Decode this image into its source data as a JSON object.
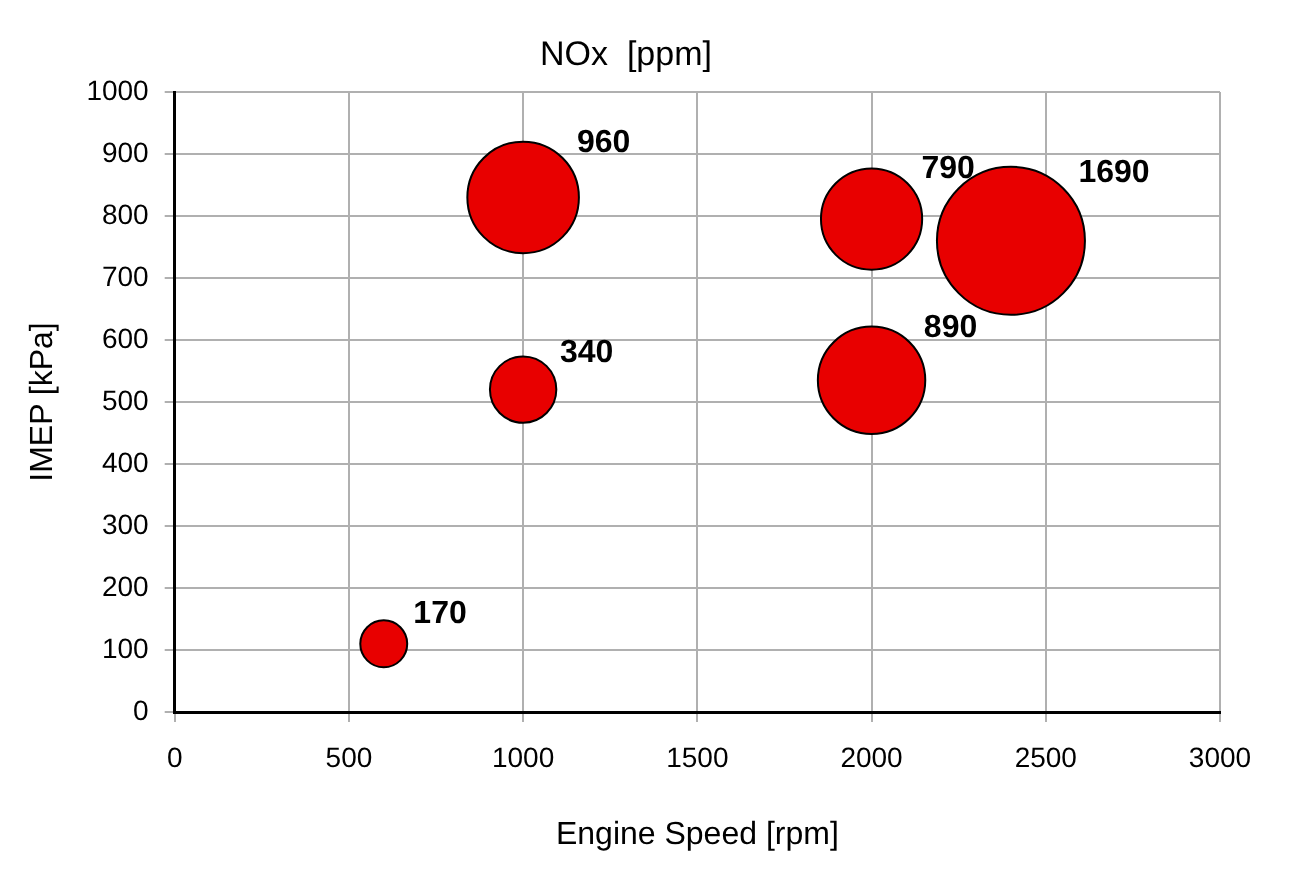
{
  "chart_data": {
    "type": "bubble",
    "title": "NOx  [ppm]",
    "xlabel": "Engine Speed [rpm]",
    "ylabel": "IMEP [kPa]",
    "x": [
      600,
      1000,
      1000,
      2000,
      2000,
      2400
    ],
    "values": [
      110,
      520,
      830,
      535,
      795,
      760
    ],
    "sizes": [
      170,
      340,
      960,
      890,
      790,
      1690
    ],
    "value_labels": [
      "170",
      "340",
      "960",
      "890",
      "790",
      "1690"
    ],
    "color": "#e80000",
    "xlim": [
      0,
      3000
    ],
    "xticks": [
      0,
      500,
      1000,
      1500,
      2000,
      2500,
      3000
    ],
    "ylim": [
      0,
      1000
    ],
    "yticks": [
      0,
      100,
      200,
      300,
      400,
      500,
      600,
      700,
      800,
      900,
      1000
    ],
    "grid": true,
    "legend": false
  }
}
